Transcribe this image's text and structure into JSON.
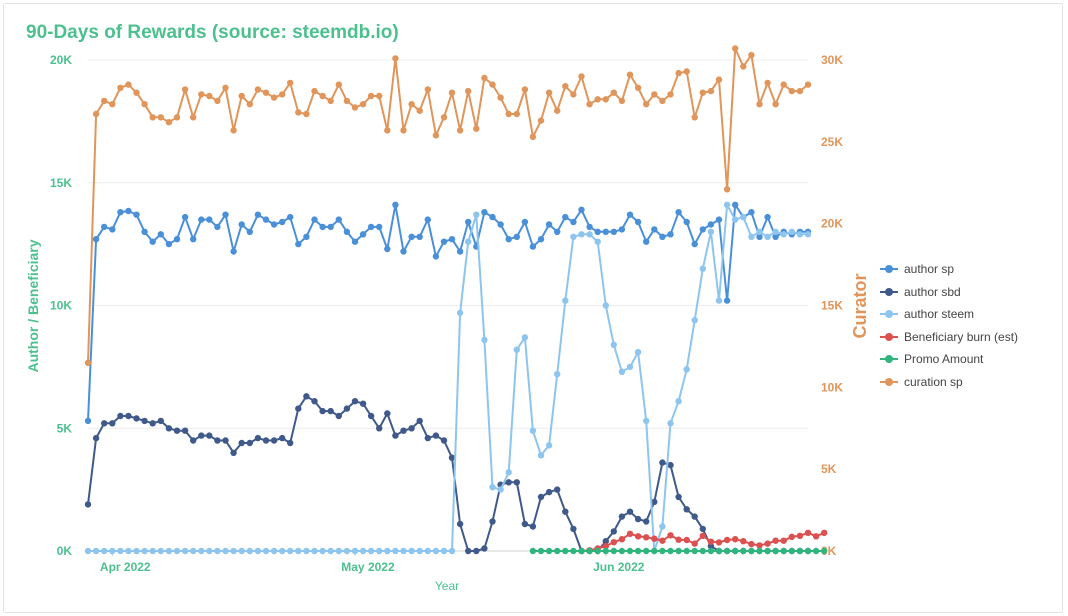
{
  "chart_data": {
    "type": "line",
    "title": "90-Days of Rewards (source: steemdb.io)",
    "xlabel": "Year",
    "y_left_label": "Author / Beneficiary",
    "y_right_label": "Curator",
    "y_left_range": [
      0,
      20000
    ],
    "y_right_range": [
      0,
      30000
    ],
    "y_left_ticks": [
      "0K",
      "5K",
      "10K",
      "15K",
      "20K"
    ],
    "y_right_ticks": [
      "0K",
      "5K",
      "10K",
      "15K",
      "20K",
      "25K",
      "30K"
    ],
    "x_ticks": [
      {
        "day": 3,
        "label": "Apr 2022"
      },
      {
        "day": 33,
        "label": "May 2022"
      },
      {
        "day": 64,
        "label": "Jun 2022"
      }
    ],
    "grid": true,
    "legend_position": "right",
    "colors": {
      "title": "#4cc08e",
      "left_axis": "#4cc08e",
      "right_axis": "#e0955a",
      "grid": "#ececec"
    },
    "series": [
      {
        "name": "author sp",
        "color": "#4a90d9",
        "axis": "left",
        "values": [
          5300,
          12700,
          13200,
          13100,
          13800,
          13850,
          13700,
          13000,
          12600,
          12900,
          12500,
          12700,
          13600,
          12700,
          13500,
          13500,
          13200,
          13700,
          12200,
          13300,
          13000,
          13700,
          13500,
          13300,
          13400,
          13600,
          12500,
          12800,
          13500,
          13200,
          13200,
          13500,
          13000,
          12600,
          12900,
          13200,
          13200,
          12300,
          14100,
          12200,
          12800,
          12800,
          13500,
          12000,
          12600,
          12700,
          12200,
          13400,
          12400,
          13800,
          13600,
          13300,
          12700,
          12800,
          13400,
          12400,
          12700,
          13300,
          13000,
          13600,
          13400,
          13900,
          13200,
          13000,
          13000,
          13000,
          13100,
          13700,
          13400,
          12600,
          13100,
          12800,
          12900,
          13800,
          13400,
          12500,
          13100,
          13300,
          13500,
          10200,
          14100,
          13600,
          13800,
          12800,
          13600,
          12800,
          13000,
          12900,
          13000,
          13000
        ]
      },
      {
        "name": "author sbd",
        "color": "#3f5a8a",
        "axis": "left",
        "values": [
          1900,
          4600,
          5200,
          5200,
          5500,
          5500,
          5400,
          5300,
          5200,
          5300,
          5000,
          4900,
          4900,
          4500,
          4700,
          4700,
          4500,
          4500,
          4000,
          4400,
          4400,
          4600,
          4500,
          4500,
          4600,
          4400,
          5800,
          6300,
          6100,
          5700,
          5700,
          5500,
          5800,
          6100,
          6000,
          5500,
          5000,
          5600,
          4700,
          4900,
          5000,
          5300,
          4600,
          4700,
          4500,
          3800,
          1100,
          0,
          0,
          100,
          1200,
          2700,
          2800,
          2800,
          1100,
          1000,
          2200,
          2400,
          2500,
          1600,
          900,
          0,
          0,
          0,
          400,
          800,
          1400,
          1600,
          1300,
          1200,
          2000,
          3600,
          3500,
          2200,
          1700,
          1400,
          900,
          200,
          0,
          0,
          0,
          0,
          0,
          0,
          0,
          0,
          0,
          0,
          0,
          0
        ]
      },
      {
        "name": "author steem",
        "color": "#8ec5ee",
        "axis": "left",
        "values": [
          0,
          0,
          0,
          0,
          0,
          0,
          0,
          0,
          0,
          0,
          0,
          0,
          0,
          0,
          0,
          0,
          0,
          0,
          0,
          0,
          0,
          0,
          0,
          0,
          0,
          0,
          0,
          0,
          0,
          0,
          0,
          0,
          0,
          0,
          0,
          0,
          0,
          0,
          0,
          0,
          0,
          0,
          0,
          0,
          0,
          0,
          9700,
          12600,
          13700,
          8600,
          2600,
          2500,
          3200,
          8200,
          8700,
          4900,
          3900,
          4300,
          7200,
          10200,
          12800,
          12900,
          12900,
          12600,
          10000,
          8400,
          7300,
          7500,
          8100,
          5300,
          0,
          1000,
          5200,
          6100,
          7400,
          9400,
          11500,
          13000,
          10200,
          14100,
          13500,
          13600,
          12800,
          13000,
          12800,
          13000,
          12900,
          13000,
          12900,
          12900
        ]
      },
      {
        "name": "Beneficiary burn (est)",
        "color": "#dc5050",
        "axis": "left",
        "start_day": 61,
        "values": [
          0,
          30,
          100,
          200,
          360,
          480,
          700,
          600,
          560,
          500,
          420,
          640,
          460,
          450,
          300,
          620,
          380,
          350,
          450,
          480,
          400,
          280,
          230,
          300,
          420,
          420,
          580,
          620,
          740,
          600,
          740
        ]
      },
      {
        "name": "Promo Amount",
        "color": "#2fb57d",
        "axis": "left",
        "start_day": 55,
        "values": [
          0,
          0,
          0,
          0,
          0,
          0,
          0,
          0,
          0,
          0,
          0,
          0,
          0,
          0,
          0,
          0,
          0,
          0,
          0,
          0,
          0,
          0,
          0,
          0,
          0,
          0,
          0,
          0,
          0,
          0,
          0,
          0,
          0,
          0,
          0,
          0,
          0
        ]
      },
      {
        "name": "curation sp",
        "color": "#e0955a",
        "axis": "right",
        "values": [
          11500,
          26700,
          27500,
          27300,
          28300,
          28500,
          28000,
          27300,
          26500,
          26500,
          26200,
          26500,
          28200,
          26500,
          27900,
          27800,
          27500,
          28300,
          25700,
          27800,
          27300,
          28200,
          28000,
          27700,
          27900,
          28600,
          26800,
          26700,
          28100,
          27800,
          27500,
          28500,
          27500,
          27100,
          27300,
          27800,
          27800,
          25700,
          30100,
          25700,
          27300,
          26900,
          28200,
          25400,
          26500,
          28000,
          25700,
          28100,
          25800,
          28900,
          28500,
          27700,
          26700,
          26700,
          28200,
          25300,
          26300,
          28000,
          26900,
          28400,
          27900,
          29000,
          27300,
          27600,
          27600,
          28000,
          27500,
          29100,
          28300,
          27300,
          27900,
          27500,
          27900,
          29200,
          29300,
          26500,
          28000,
          28100,
          28800,
          22100,
          30700,
          29600,
          30300,
          27300,
          28600,
          27300,
          28500,
          28100,
          28100,
          28500
        ]
      }
    ]
  }
}
